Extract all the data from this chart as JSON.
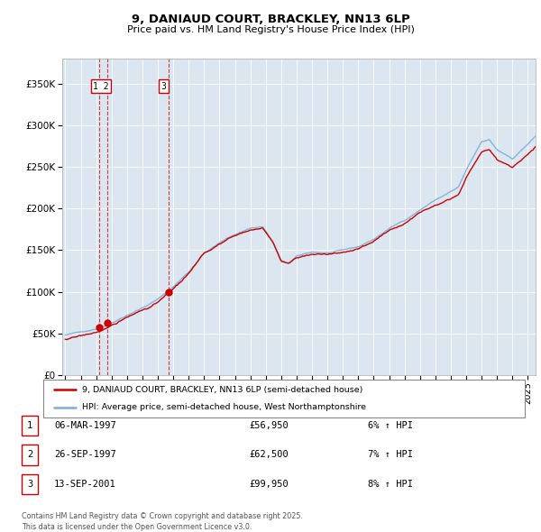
{
  "title": "9, DANIAUD COURT, BRACKLEY, NN13 6LP",
  "subtitle": "Price paid vs. HM Land Registry's House Price Index (HPI)",
  "legend_line1": "9, DANIAUD COURT, BRACKLEY, NN13 6LP (semi-detached house)",
  "legend_line2": "HPI: Average price, semi-detached house, West Northamptonshire",
  "footnote": "Contains HM Land Registry data © Crown copyright and database right 2025.\nThis data is licensed under the Open Government Licence v3.0.",
  "price_color": "#cc0000",
  "hpi_color": "#7bafd4",
  "background_color": "#dce6f0",
  "grid_color": "#ffffff",
  "border_color": "#aaaaaa",
  "sale_points": [
    {
      "date_num": 1997.18,
      "price": 56950,
      "label": "1"
    },
    {
      "date_num": 1997.74,
      "price": 62500,
      "label": "2"
    },
    {
      "date_num": 2001.71,
      "price": 99950,
      "label": "3"
    }
  ],
  "vline_dates": [
    1997.18,
    1997.74,
    2001.71
  ],
  "table_rows": [
    {
      "num": "1",
      "date": "06-MAR-1997",
      "price": "£56,950",
      "hpi": "6% ↑ HPI"
    },
    {
      "num": "2",
      "date": "26-SEP-1997",
      "price": "£62,500",
      "hpi": "7% ↑ HPI"
    },
    {
      "num": "3",
      "date": "13-SEP-2001",
      "price": "£99,950",
      "hpi": "8% ↑ HPI"
    }
  ],
  "xlim": [
    1994.8,
    2025.5
  ],
  "ylim": [
    0,
    380000
  ],
  "yticks": [
    0,
    50000,
    100000,
    150000,
    200000,
    250000,
    300000,
    350000
  ],
  "ytick_labels": [
    "£0",
    "£50K",
    "£100K",
    "£150K",
    "£200K",
    "£250K",
    "£300K",
    "£350K"
  ],
  "xticks": [
    1995,
    1996,
    1997,
    1998,
    1999,
    2000,
    2001,
    2002,
    2003,
    2004,
    2005,
    2006,
    2007,
    2008,
    2009,
    2010,
    2011,
    2012,
    2013,
    2014,
    2015,
    2016,
    2017,
    2018,
    2019,
    2020,
    2021,
    2022,
    2023,
    2024,
    2025
  ]
}
